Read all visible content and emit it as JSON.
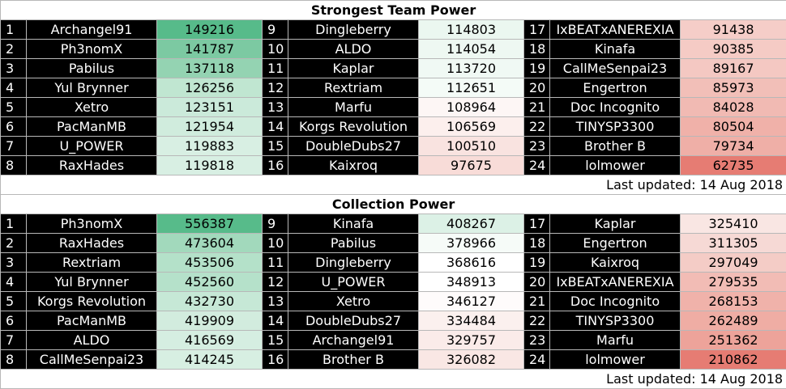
{
  "tables": [
    {
      "title": "Strongest Team Power",
      "footer": "Last updated: 14 Aug 2018",
      "entries": [
        {
          "rank": "1",
          "name": "Archangel91",
          "value": 149216,
          "color": "#57bb8a"
        },
        {
          "rank": "2",
          "name": "Ph3nomX",
          "value": 141787,
          "color": "#7cc9a2"
        },
        {
          "rank": "3",
          "name": "Pabilus",
          "value": 137118,
          "color": "#94d3b2"
        },
        {
          "rank": "4",
          "name": "Yul Brynner",
          "value": 126256,
          "color": "#c0e6d1"
        },
        {
          "rank": "5",
          "name": "Xetro",
          "value": 123151,
          "color": "#cbeada"
        },
        {
          "rank": "6",
          "name": "PacManMB",
          "value": 121954,
          "color": "#d0ecdd"
        },
        {
          "rank": "7",
          "name": "U_POWER",
          "value": 119883,
          "color": "#d8efe3"
        },
        {
          "rank": "8",
          "name": "RaxHades",
          "value": 119818,
          "color": "#d8efe3"
        },
        {
          "rank": "9",
          "name": "Dingleberry",
          "value": 114803,
          "color": "#ebf7f0"
        },
        {
          "rank": "10",
          "name": "ALDO",
          "value": 114054,
          "color": "#eef8f2"
        },
        {
          "rank": "11",
          "name": "Kaplar",
          "value": 113720,
          "color": "#f0f9f4"
        },
        {
          "rank": "12",
          "name": "Rextriam",
          "value": 112651,
          "color": "#f4fbf7"
        },
        {
          "rank": "13",
          "name": "Marfu",
          "value": 108964,
          "color": "#fdf6f5"
        },
        {
          "rank": "14",
          "name": "Korgs Revolution",
          "value": 106569,
          "color": "#fcefed"
        },
        {
          "rank": "15",
          "name": "DoubleDubs27",
          "value": 100510,
          "color": "#f9e3e0"
        },
        {
          "rank": "16",
          "name": "Kaixroq",
          "value": 97675,
          "color": "#f8dcd8"
        },
        {
          "rank": "17",
          "name": "IxBEATxANEREXIA",
          "value": 91438,
          "color": "#f5cdc8"
        },
        {
          "rank": "18",
          "name": "Kinafa",
          "value": 90385,
          "color": "#f5cbc5"
        },
        {
          "rank": "19",
          "name": "CallMeSenpai23",
          "value": 89167,
          "color": "#f4c8c2"
        },
        {
          "rank": "20",
          "name": "Engertron",
          "value": 85973,
          "color": "#f2bfb8"
        },
        {
          "rank": "21",
          "name": "Doc Incognito",
          "value": 84028,
          "color": "#f1bab3"
        },
        {
          "rank": "22",
          "name": "TINYSP3300",
          "value": 80504,
          "color": "#f0b1a9"
        },
        {
          "rank": "23",
          "name": "Brother B",
          "value": 79734,
          "color": "#efafa7"
        },
        {
          "rank": "24",
          "name": "lolmower",
          "value": 62735,
          "color": "#e67c73"
        }
      ]
    },
    {
      "title": "Collection Power",
      "footer": "Last updated: 14 Aug 2018",
      "entries": [
        {
          "rank": "1",
          "name": "Ph3nomX",
          "value": 556387,
          "color": "#57bb8a"
        },
        {
          "rank": "2",
          "name": "RaxHades",
          "value": 473604,
          "color": "#a2d9bc"
        },
        {
          "rank": "3",
          "name": "Rextriam",
          "value": 453506,
          "color": "#b4e1c9"
        },
        {
          "rank": "4",
          "name": "Yul Brynner",
          "value": 452560,
          "color": "#b5e1ca"
        },
        {
          "rank": "5",
          "name": "Korgs Revolution",
          "value": 432730,
          "color": "#c6e8d6"
        },
        {
          "rank": "6",
          "name": "PacManMB",
          "value": 419909,
          "color": "#d2ecde"
        },
        {
          "rank": "7",
          "name": "ALDO",
          "value": 416569,
          "color": "#d5eee1"
        },
        {
          "rank": "8",
          "name": "CallMeSenpai23",
          "value": 414245,
          "color": "#d7efe2"
        },
        {
          "rank": "9",
          "name": "Kinafa",
          "value": 408267,
          "color": "#dcf1e6"
        },
        {
          "rank": "10",
          "name": "Pabilus",
          "value": 378966,
          "color": "#f6fbf8"
        },
        {
          "rank": "11",
          "name": "Dingleberry",
          "value": 368616,
          "color": "#ffffff"
        },
        {
          "rank": "12",
          "name": "U_POWER",
          "value": 348913,
          "color": "#ffffff"
        },
        {
          "rank": "13",
          "name": "Xetro",
          "value": 346127,
          "color": "#fefbfb"
        },
        {
          "rank": "14",
          "name": "DoubleDubs27",
          "value": 334484,
          "color": "#fbf0ee"
        },
        {
          "rank": "15",
          "name": "Archangel91",
          "value": 329757,
          "color": "#faebe9"
        },
        {
          "rank": "16",
          "name": "Brother B",
          "value": 326082,
          "color": "#f9e7e4"
        },
        {
          "rank": "17",
          "name": "Kaplar",
          "value": 325410,
          "color": "#f9e6e3"
        },
        {
          "rank": "18",
          "name": "Engertron",
          "value": 311305,
          "color": "#f6d9d5"
        },
        {
          "rank": "19",
          "name": "Kaixroq",
          "value": 297049,
          "color": "#f4ccc6"
        },
        {
          "rank": "20",
          "name": "IxBEATxANEREXIA",
          "value": 279535,
          "color": "#f2bcb5"
        },
        {
          "rank": "21",
          "name": "Doc Incognito",
          "value": 268153,
          "color": "#f0b2aa"
        },
        {
          "rank": "22",
          "name": "TINYSP3300",
          "value": 262489,
          "color": "#efada4"
        },
        {
          "rank": "23",
          "name": "Marfu",
          "value": 251362,
          "color": "#eda39a"
        },
        {
          "rank": "24",
          "name": "lolmower",
          "value": 210862,
          "color": "#e67c73"
        }
      ]
    }
  ]
}
